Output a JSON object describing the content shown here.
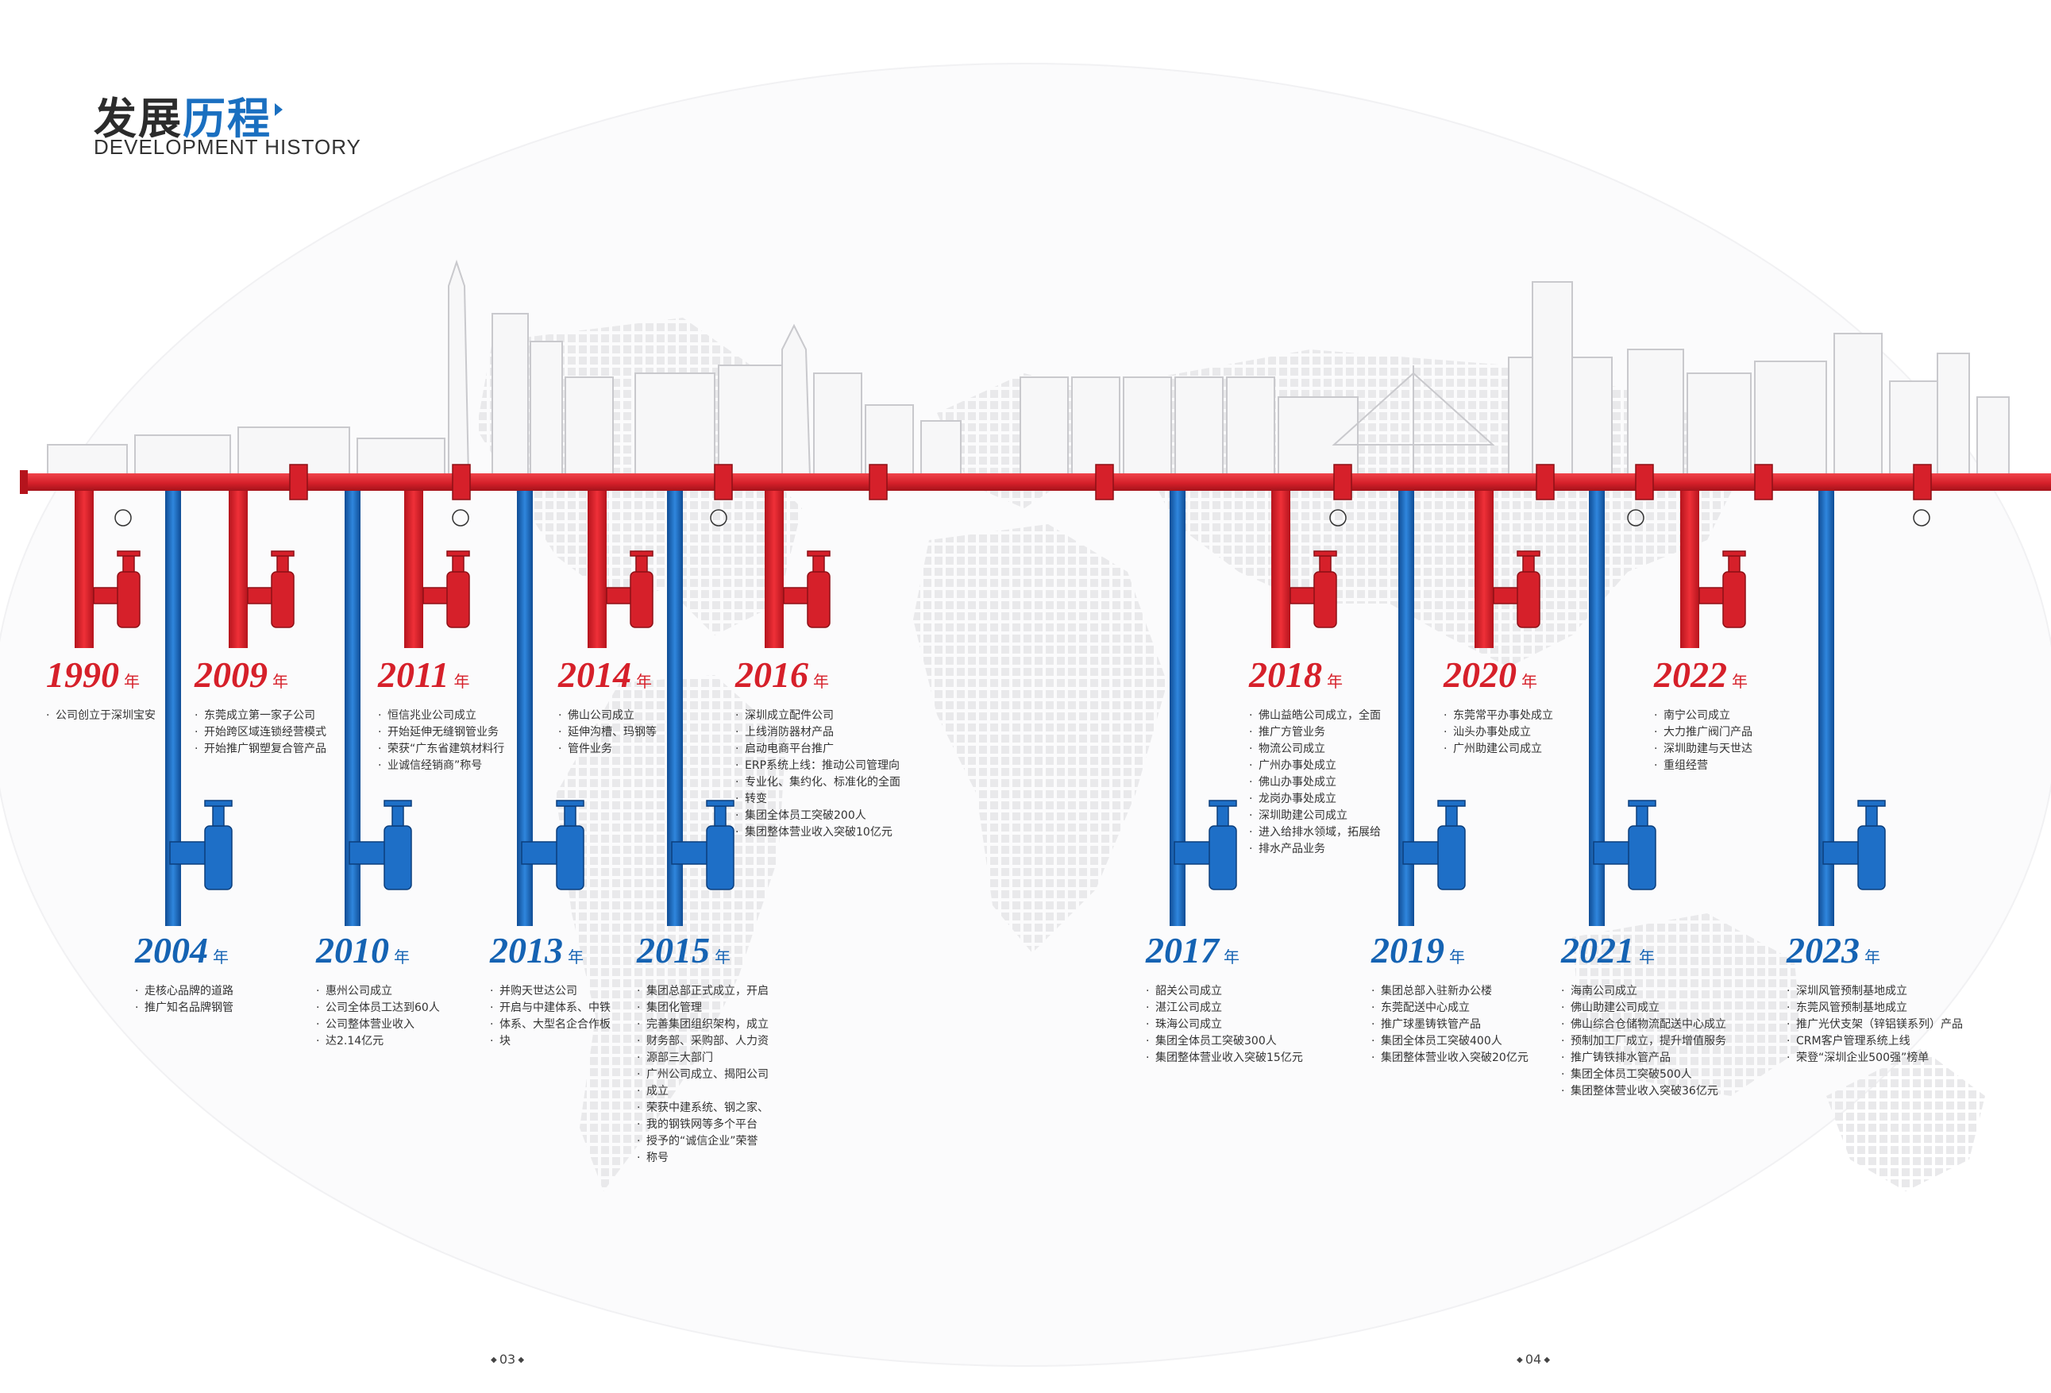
{
  "title": {
    "cn_dark": "发展",
    "cn_blue": "历程",
    "en": "DEVELOPMENT HISTORY"
  },
  "colors": {
    "red": "#d6202a",
    "blue": "#1563b3",
    "title_blue": "#1a6fc0"
  },
  "year_suffix": "年",
  "events": [
    {
      "year": "1990",
      "color": "red",
      "items": [
        "公司创立于深圳宝安"
      ]
    },
    {
      "year": "2009",
      "color": "red",
      "items": [
        "东莞成立第一家子公司",
        "开始跨区域连锁经营模式",
        "开始推广钢塑复合管产品"
      ]
    },
    {
      "year": "2011",
      "color": "red",
      "items": [
        "恒信兆业公司成立",
        "开始延伸无缝钢管业务",
        "荣获“广东省建筑材料行",
        "业诚信经销商”称号"
      ]
    },
    {
      "year": "2014",
      "color": "red",
      "items": [
        "佛山公司成立",
        "延伸沟槽、玛钢等",
        "管件业务"
      ]
    },
    {
      "year": "2016",
      "color": "red",
      "items": [
        "深圳成立配件公司",
        "上线消防器材产品",
        "启动电商平台推广",
        "ERP系统上线：推动公司管理向",
        "专业化、集约化、标准化的全面",
        "转变",
        "集团全体员工突破200人",
        "集团整体营业收入突破10亿元"
      ]
    },
    {
      "year": "2018",
      "color": "red",
      "items": [
        "佛山益皓公司成立，全面",
        "推广方管业务",
        "物流公司成立",
        "广州办事处成立",
        "佛山办事处成立",
        "龙岗办事处成立",
        "深圳助建公司成立",
        "进入给排水领域，拓展给",
        "排水产品业务"
      ]
    },
    {
      "year": "2020",
      "color": "red",
      "items": [
        "东莞常平办事处成立",
        "汕头办事处成立",
        "广州助建公司成立"
      ]
    },
    {
      "year": "2022",
      "color": "red",
      "items": [
        "南宁公司成立",
        "大力推广阀门产品",
        "深圳助建与天世达",
        "重组经营"
      ]
    },
    {
      "year": "2004",
      "color": "blue",
      "items": [
        "走核心品牌的道路",
        "推广知名品牌钢管"
      ]
    },
    {
      "year": "2010",
      "color": "blue",
      "items": [
        "惠州公司成立",
        "公司全体员工达到60人",
        "公司整体营业收入",
        "达2.14亿元"
      ]
    },
    {
      "year": "2013",
      "color": "blue",
      "items": [
        "并购天世达公司",
        "开启与中建体系、中铁",
        "体系、大型名企合作板",
        "块"
      ]
    },
    {
      "year": "2015",
      "color": "blue",
      "items": [
        "集团总部正式成立，开启",
        "集团化管理",
        "完善集团组织架构，成立",
        "财务部、采购部、人力资",
        "源部三大部门",
        "广州公司成立、揭阳公司",
        "成立",
        "荣获中建系统、钢之家、",
        "我的钢铁网等多个平台",
        "授予的“诚信企业”荣誉",
        "称号"
      ]
    },
    {
      "year": "2017",
      "color": "blue",
      "items": [
        "韶关公司成立",
        "湛江公司成立",
        "珠海公司成立",
        "集团全体员工突破300人",
        "集团整体营业收入突破15亿元"
      ]
    },
    {
      "year": "2019",
      "color": "blue",
      "items": [
        "集团总部入驻新办公楼",
        "东莞配送中心成立",
        "推广球墨铸铁管产品",
        "集团全体员工突破400人",
        "集团整体营业收入突破20亿元"
      ]
    },
    {
      "year": "2021",
      "color": "blue",
      "items": [
        "海南公司成立",
        "佛山助建公司成立",
        "佛山综合仓储物流配送中心成立",
        "预制加工厂成立，提升增值服务",
        "推广铸铁排水管产品",
        "集团全体员工突破500人",
        "集团整体营业收入突破36亿元"
      ]
    },
    {
      "year": "2023",
      "color": "blue",
      "items": [
        "深圳风管预制基地成立",
        "东莞风管预制基地成立",
        "推广光伏支架（锌铝镁系列）产品",
        "CRM客户管理系统上线",
        "荣登“深圳企业500强”榜单"
      ]
    }
  ],
  "pages": {
    "left": "03",
    "right": "04"
  }
}
